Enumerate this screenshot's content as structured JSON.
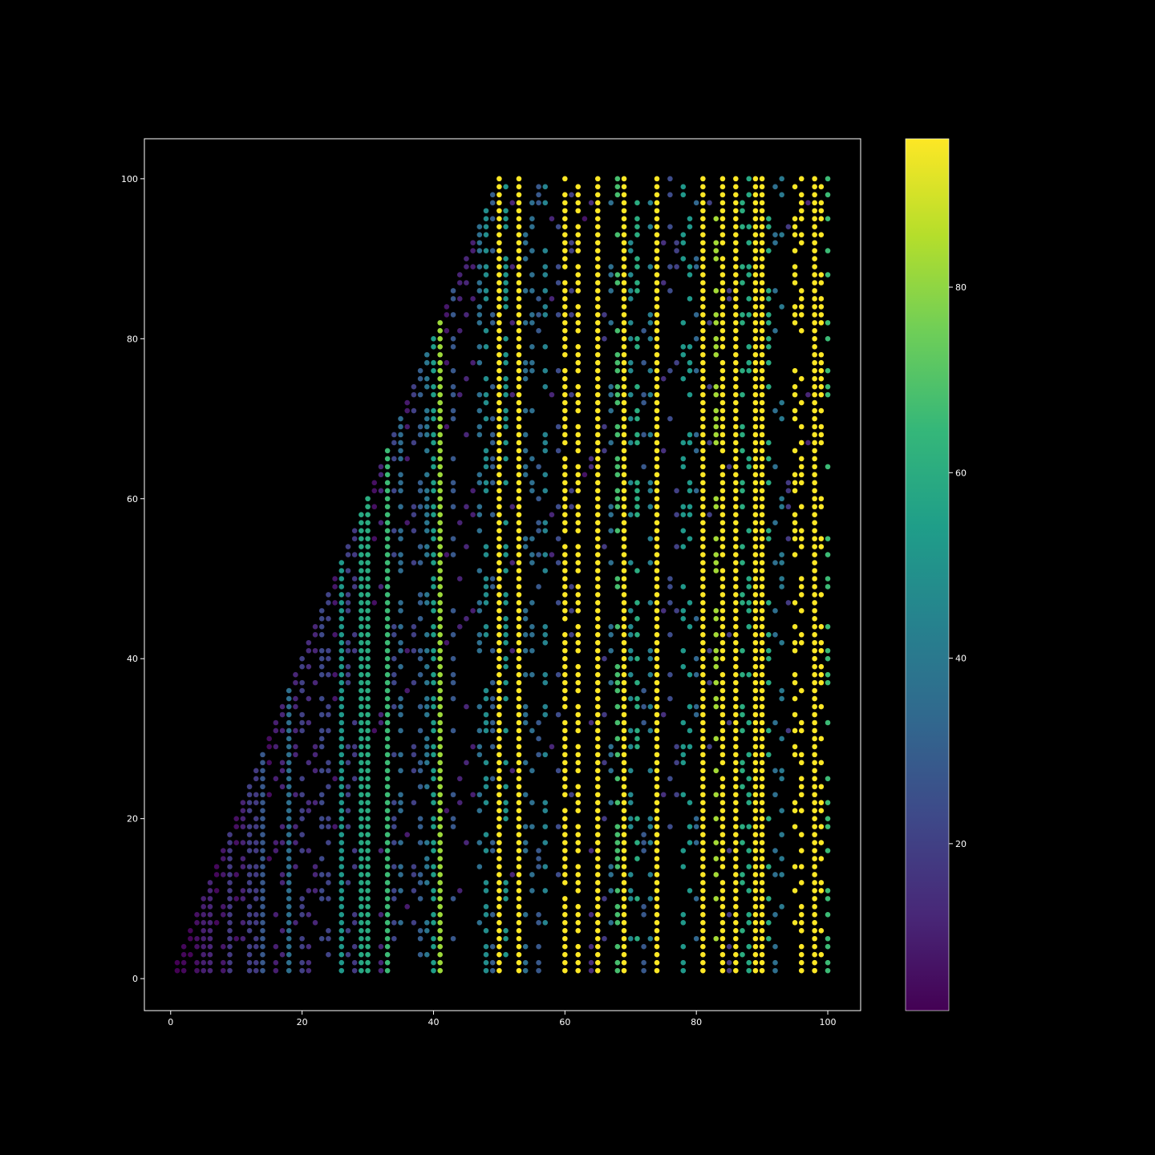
{
  "chart_data": {
    "type": "scatter",
    "title": "",
    "xlabel": "",
    "ylabel": "",
    "xlim": [
      -4,
      105
    ],
    "ylim": [
      -4,
      105
    ],
    "xticks": [
      0,
      20,
      40,
      60,
      80,
      100
    ],
    "yticks": [
      0,
      20,
      40,
      60,
      80,
      100
    ],
    "grid": false,
    "background": "#000000",
    "point_rule": "integer points (x, y), 1 <= x, y <= 100, where y = 2^k * x mod (2x + 1) for some k >= 1; colour = cycle length of the doubling map",
    "point_color_hex": [
      "#440154",
      "#482878",
      "#3e4989",
      "#31688e",
      "#26828e",
      "#1f9e89",
      "#35b779",
      "#6ece58",
      "#b5de2b",
      "#fde725"
    ],
    "colorbar": {
      "label": "",
      "ticks": [
        20,
        40,
        60,
        80
      ],
      "range": [
        2,
        96
      ],
      "colormap": "viridis"
    }
  }
}
